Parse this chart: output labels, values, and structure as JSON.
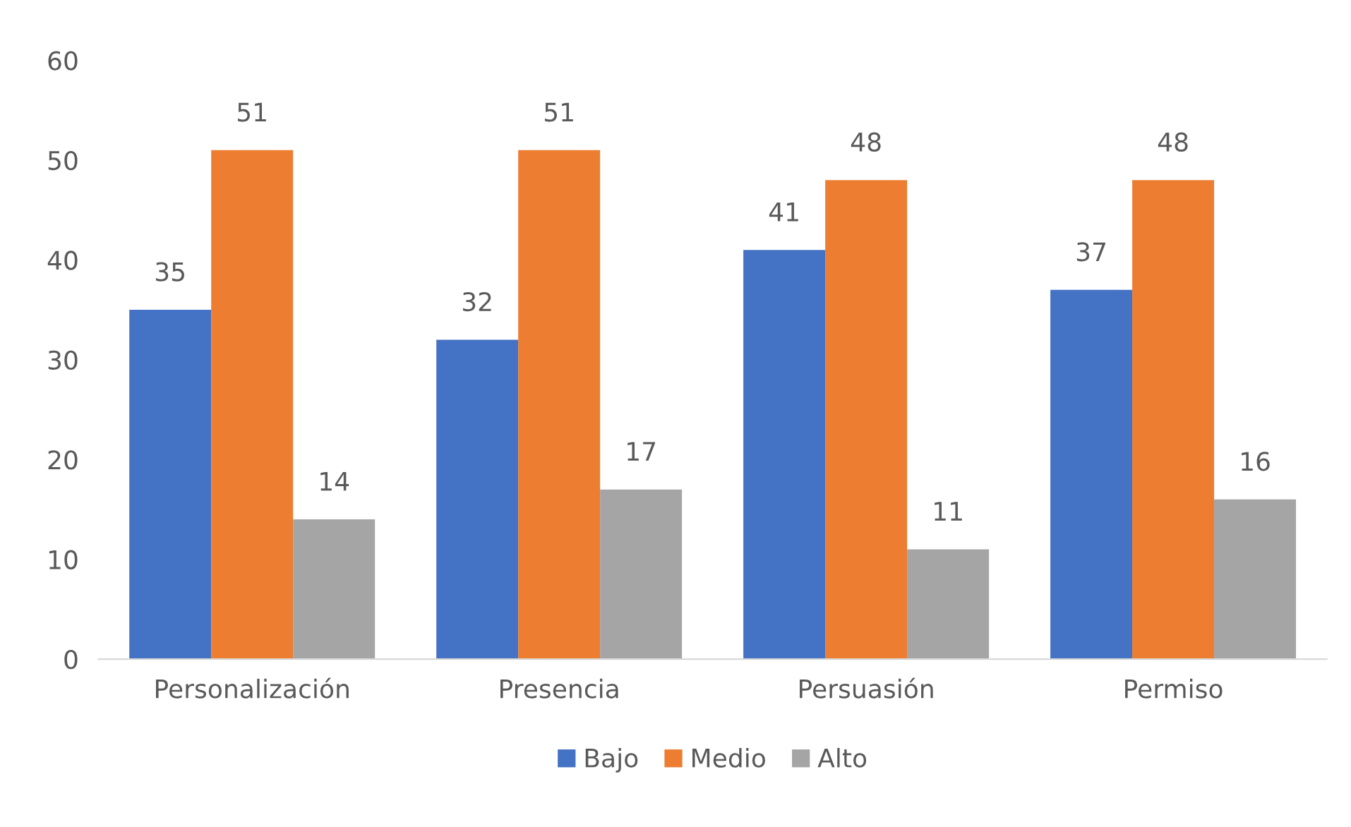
{
  "chart_data": {
    "type": "bar",
    "categories": [
      "Personalización",
      "Presencia",
      "Persuasión",
      "Permiso"
    ],
    "series": [
      {
        "name": "Bajo",
        "color": "#4472c4",
        "values": [
          35,
          32,
          41,
          37
        ]
      },
      {
        "name": "Medio",
        "color": "#ed7d31",
        "values": [
          51,
          51,
          48,
          48
        ]
      },
      {
        "name": "Alto",
        "color": "#a5a5a5",
        "values": [
          14,
          17,
          11,
          16
        ]
      }
    ],
    "ylim": [
      0,
      60
    ],
    "yticks": [
      0,
      10,
      20,
      30,
      40,
      50,
      60
    ],
    "grid": false,
    "legend": "bottom",
    "data_labels": true
  }
}
